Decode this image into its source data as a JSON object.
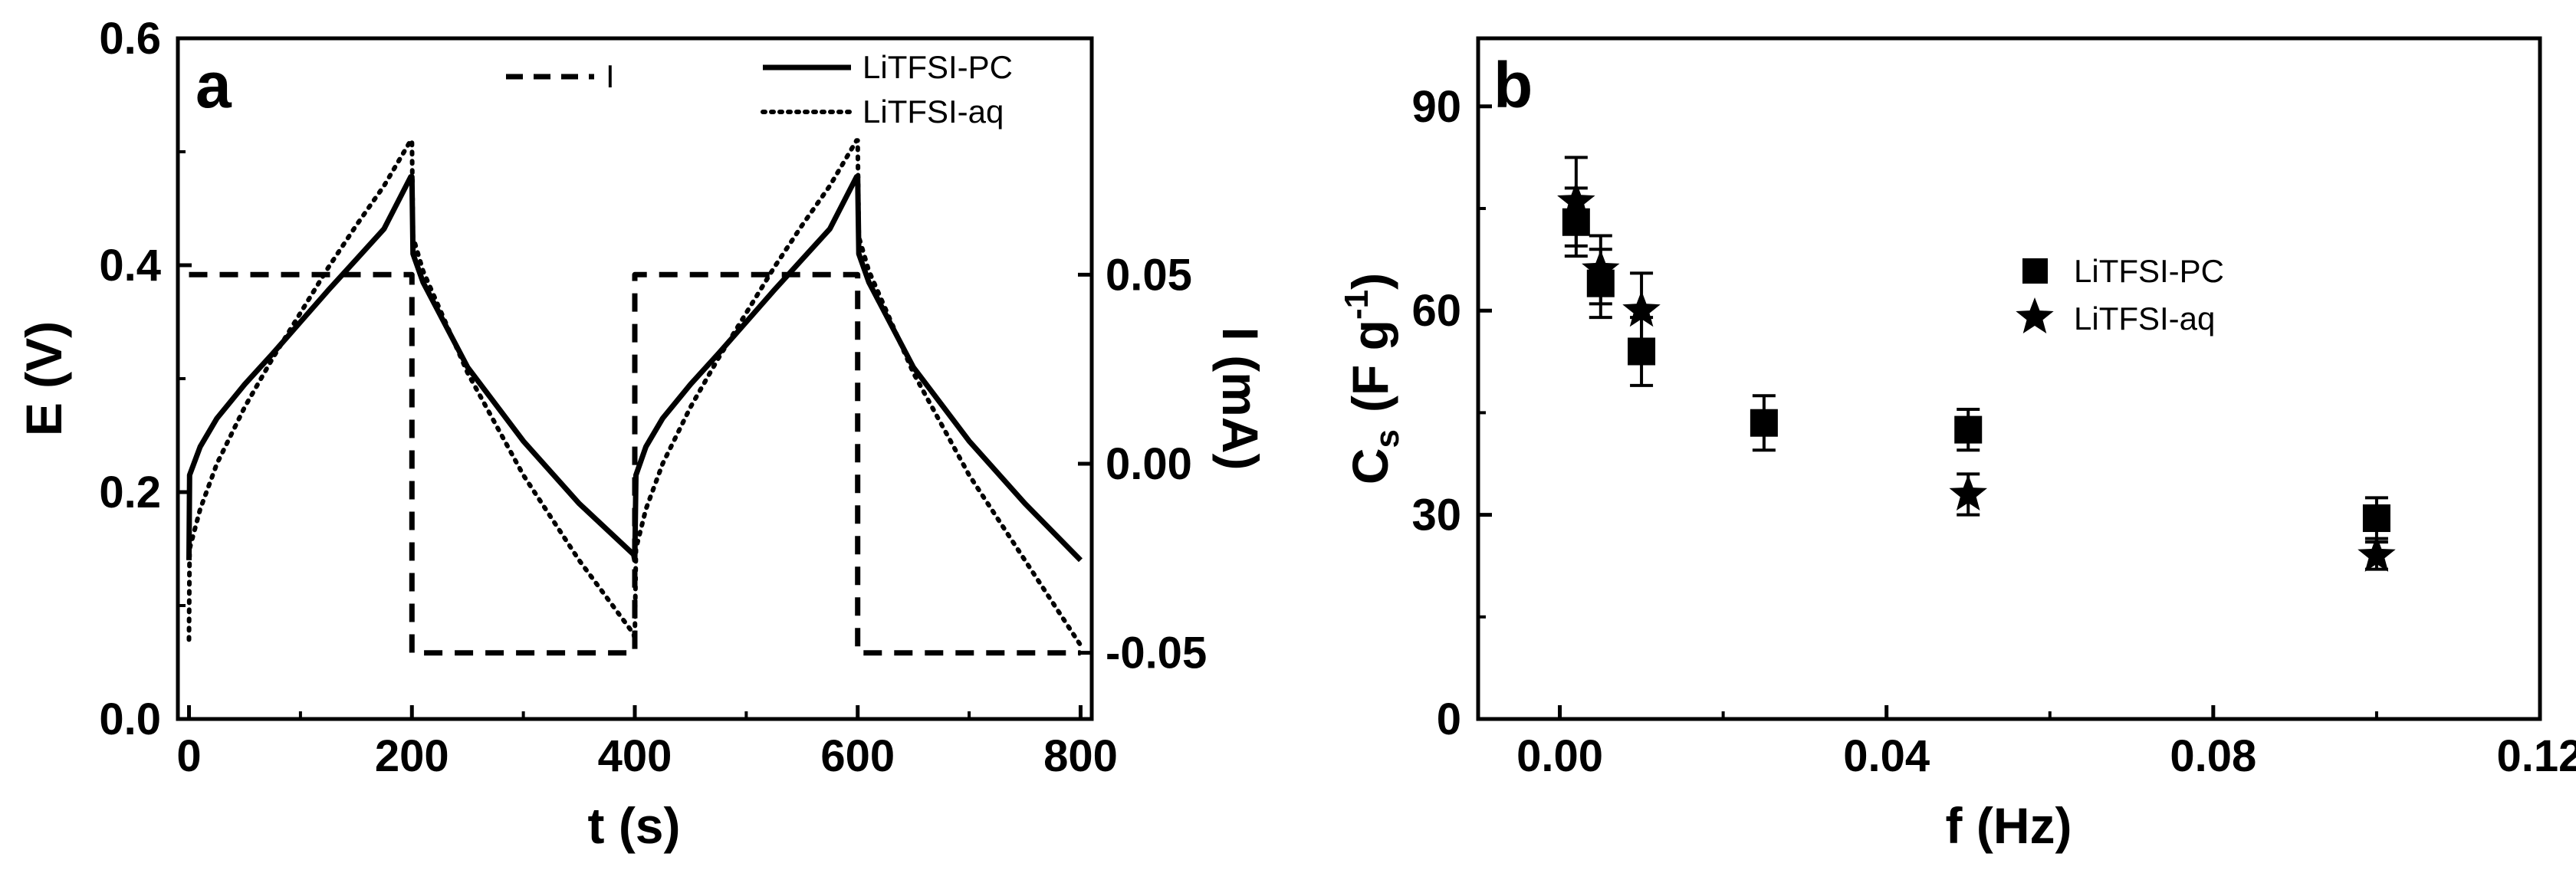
{
  "colors": {
    "ink": "#000000",
    "background": "#ffffff"
  },
  "chart_data": [
    {
      "panel": "a",
      "type": "line",
      "xlabel": "t (s)",
      "ylabel": "E (V)",
      "y2label": "I (mA)",
      "xlim": [
        -10,
        810
      ],
      "ylim": [
        0,
        0.6
      ],
      "y2lim": [
        -0.0675,
        0.1125
      ],
      "xticks": [
        0,
        200,
        400,
        600,
        800
      ],
      "yticks": [
        0.0,
        0.2,
        0.4,
        0.6
      ],
      "y2ticks": [
        -0.05,
        0.0,
        0.05
      ],
      "xtick_labels": [
        "0",
        "200",
        "400",
        "600",
        "800"
      ],
      "ytick_labels": [
        "0.0",
        "0.2",
        "0.4",
        "0.6"
      ],
      "y2tick_labels": [
        "-0.05",
        "0.00",
        "0.05"
      ],
      "legend": {
        "placement": "top",
        "entries": [
          "I",
          "LiTFSI-PC",
          "LiTFSI-aq"
        ]
      },
      "series": [
        {
          "name": "LiTFSI-PC",
          "axis": "left",
          "style": "solid",
          "x": [
            0,
            0.5,
            10,
            25,
            50,
            75,
            100,
            125,
            150,
            175,
            199,
            200,
            201,
            210,
            250,
            300,
            350,
            399,
            400,
            401,
            410,
            425,
            450,
            475,
            500,
            525,
            550,
            575,
            599,
            600,
            601,
            610,
            650,
            700,
            750,
            800
          ],
          "y": [
            0.14,
            0.215,
            0.24,
            0.265,
            0.295,
            0.322,
            0.35,
            0.378,
            0.405,
            0.432,
            0.478,
            0.478,
            0.41,
            0.385,
            0.31,
            0.245,
            0.19,
            0.145,
            0.14,
            0.215,
            0.24,
            0.265,
            0.295,
            0.322,
            0.35,
            0.378,
            0.405,
            0.432,
            0.478,
            0.478,
            0.41,
            0.385,
            0.31,
            0.245,
            0.19,
            0.14
          ]
        },
        {
          "name": "LiTFSI-aq",
          "axis": "left",
          "style": "dotted",
          "x": [
            0,
            0.5,
            10,
            25,
            50,
            75,
            100,
            125,
            150,
            175,
            199,
            200,
            201,
            210,
            250,
            300,
            350,
            399,
            400,
            401,
            410,
            425,
            450,
            475,
            500,
            525,
            550,
            575,
            599,
            600,
            601,
            610,
            650,
            700,
            750,
            800
          ],
          "y": [
            0.07,
            0.15,
            0.185,
            0.225,
            0.275,
            0.318,
            0.358,
            0.398,
            0.435,
            0.47,
            0.51,
            0.51,
            0.425,
            0.395,
            0.305,
            0.215,
            0.14,
            0.075,
            0.07,
            0.15,
            0.185,
            0.225,
            0.275,
            0.318,
            0.358,
            0.398,
            0.435,
            0.47,
            0.51,
            0.51,
            0.425,
            0.395,
            0.305,
            0.215,
            0.14,
            0.065
          ]
        },
        {
          "name": "I",
          "axis": "right",
          "style": "dashed",
          "x": [
            0,
            200,
            200,
            400,
            400,
            600,
            600,
            800
          ],
          "y": [
            0.05,
            0.05,
            -0.05,
            -0.05,
            0.05,
            0.05,
            -0.05,
            -0.05
          ]
        }
      ]
    },
    {
      "panel": "b",
      "type": "scatter",
      "xlabel": "f (Hz)",
      "ylabel": "C_s (F g^-1)",
      "xlim": [
        -0.01,
        0.12
      ],
      "ylim": [
        0,
        100
      ],
      "xticks": [
        0.0,
        0.04,
        0.08,
        0.12
      ],
      "yticks": [
        0,
        30,
        60,
        90
      ],
      "xtick_labels": [
        "0.00",
        "0.04",
        "0.08",
        "0.12"
      ],
      "ytick_labels": [
        "0",
        "30",
        "60",
        "90"
      ],
      "legend": {
        "placement": "right",
        "entries": [
          "LiTFSI-PC",
          "LiTFSI-aq"
        ]
      },
      "series": [
        {
          "name": "LiTFSI-PC",
          "marker": "square",
          "x": [
            0.002,
            0.005,
            0.01,
            0.025,
            0.05,
            0.1
          ],
          "y": [
            73,
            64,
            54,
            43.5,
            42.5,
            29.5
          ],
          "err": [
            5,
            5,
            5,
            4,
            3,
            3
          ]
        },
        {
          "name": "LiTFSI-aq",
          "marker": "star",
          "x": [
            0.002,
            0.005,
            0.01,
            0.05,
            0.1
          ],
          "y": [
            76,
            66,
            60,
            33,
            24
          ],
          "err": [
            6.5,
            5,
            5.5,
            3,
            2
          ]
        }
      ]
    }
  ],
  "text": {
    "a_panel_label": "a",
    "a_xlabel": "t (s)",
    "a_ylabel": "E (V)",
    "a_y2label": "I (mA)",
    "a_legend_i": "I",
    "a_legend_pc": "LiTFSI-PC",
    "a_legend_aq": "LiTFSI-aq",
    "b_panel_label": "b",
    "b_xlabel": "f (Hz)",
    "b_ylabel_main": "C",
    "b_ylabel_sub": "s",
    "b_ylabel_unit": "(F g",
    "b_ylabel_sup": "-1",
    "b_ylabel_close": ")",
    "b_legend_pc": "LiTFSI-PC",
    "b_legend_aq": "LiTFSI-aq"
  }
}
